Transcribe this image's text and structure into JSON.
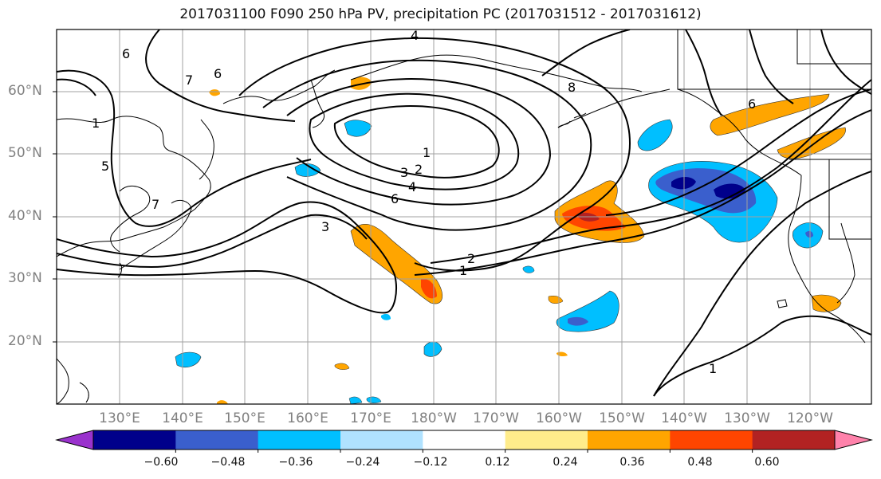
{
  "title": "2017031100 F090 250 hPa PV, precipitation PC (2017031512 - 2017031612)",
  "lat_labels": [
    "60°N",
    "50°N",
    "40°N",
    "30°N",
    "20°N"
  ],
  "lon_labels": [
    "130°E",
    "140°E",
    "150°E",
    "160°E",
    "170°E",
    "180°W",
    "170°W",
    "160°W",
    "150°W",
    "140°W",
    "130°W",
    "120°W"
  ],
  "contour_labels": [
    "6",
    "7",
    "6",
    "5",
    "7",
    "4",
    "1",
    "2",
    "3",
    "4",
    "6",
    "3",
    "2",
    "1",
    "8",
    "6",
    "1",
    "1"
  ],
  "colorbar": {
    "tick_labels": [
      "−0.60",
      "−0.48",
      "−0.36",
      "−0.24",
      "−0.12",
      "0.12",
      "0.24",
      "0.36",
      "0.48",
      "0.60"
    ],
    "colors": [
      "#9a32cd",
      "#00008b",
      "#3a5fcd",
      "#00bfff",
      "#b0e2ff",
      "#ffffff",
      "#ffec8b",
      "#ffa500",
      "#ff4500",
      "#b22222",
      "#ff82ab"
    ]
  }
}
